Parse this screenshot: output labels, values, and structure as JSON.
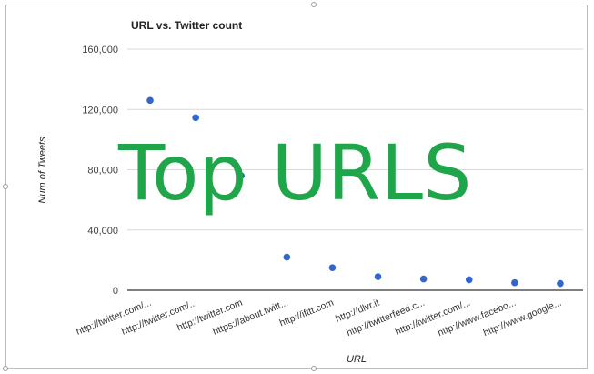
{
  "chart_data": {
    "type": "scatter",
    "title": "URL vs. Twitter count",
    "xlabel": "URL",
    "ylabel": "Num of Tweets",
    "ylim": [
      0,
      160000
    ],
    "yticks": [
      0,
      40000,
      80000,
      120000,
      160000
    ],
    "ytick_labels": [
      "0",
      "40,000",
      "80,000",
      "120,000",
      "160,000"
    ],
    "categories": [
      "http://twitter.com/...",
      "http://twitter.com/...",
      "http://twitter.com",
      "https://about.twitt...",
      "http://ifttt.com",
      "http://dlvr.it",
      "http://twitterfeed.c...",
      "http://twitter.com/...",
      "http://www.facebo...",
      "http://www.google..."
    ],
    "values": [
      126000,
      114500,
      76000,
      22000,
      15000,
      9000,
      7500,
      7000,
      5000,
      4500
    ],
    "grid": true,
    "legend": "none",
    "marker_color": "#3366cc"
  },
  "overlay": {
    "text": "Top URLS",
    "color": "#1fa64a"
  }
}
